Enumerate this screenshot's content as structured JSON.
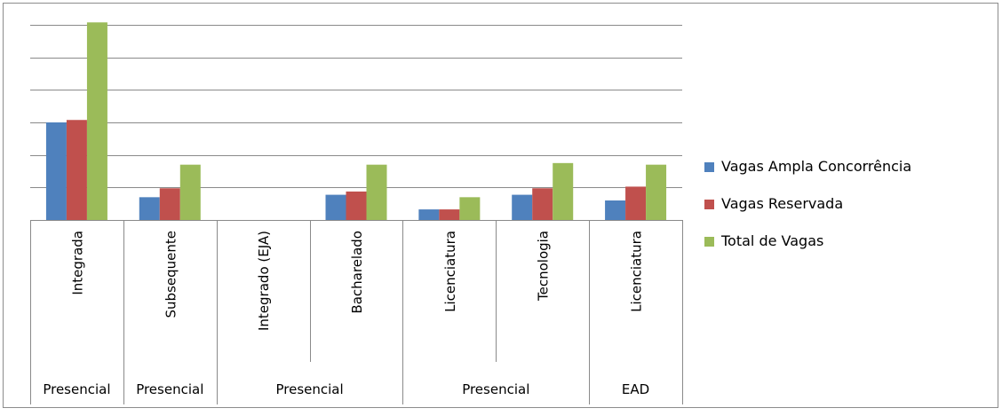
{
  "chart_data": {
    "type": "bar",
    "title": "",
    "xlabel": "",
    "ylabel": "",
    "ylim": [
      0,
      240
    ],
    "y_gridline_step": 40,
    "y_tick_labels_shown": false,
    "grid": true,
    "legend_position": "right",
    "categories": [
      "Integrada",
      "Subsequente",
      "Integrado (EJA)",
      "Bacharelado",
      "Licenciatura",
      "Tecnologia",
      "Licenciatura"
    ],
    "groups": [
      {
        "label": "Presencial",
        "span": 1
      },
      {
        "label": "Presencial",
        "span": 1
      },
      {
        "label": "Presencial",
        "span": 2
      },
      {
        "label": "Presencial",
        "span": 2
      },
      {
        "label": "EAD",
        "span": 1
      }
    ],
    "series": [
      {
        "name": "Vagas Ampla Concorrência",
        "color": "#4F81BD",
        "values": [
          120,
          28,
          0,
          31,
          13,
          31,
          24
        ]
      },
      {
        "name": "Vagas Reservada",
        "color": "#C0504D",
        "values": [
          123,
          39,
          0,
          35,
          13,
          39,
          41
        ]
      },
      {
        "name": "Total de Vagas",
        "color": "#9BBB59",
        "values": [
          243,
          68,
          0,
          68,
          28,
          70,
          68
        ]
      }
    ]
  }
}
